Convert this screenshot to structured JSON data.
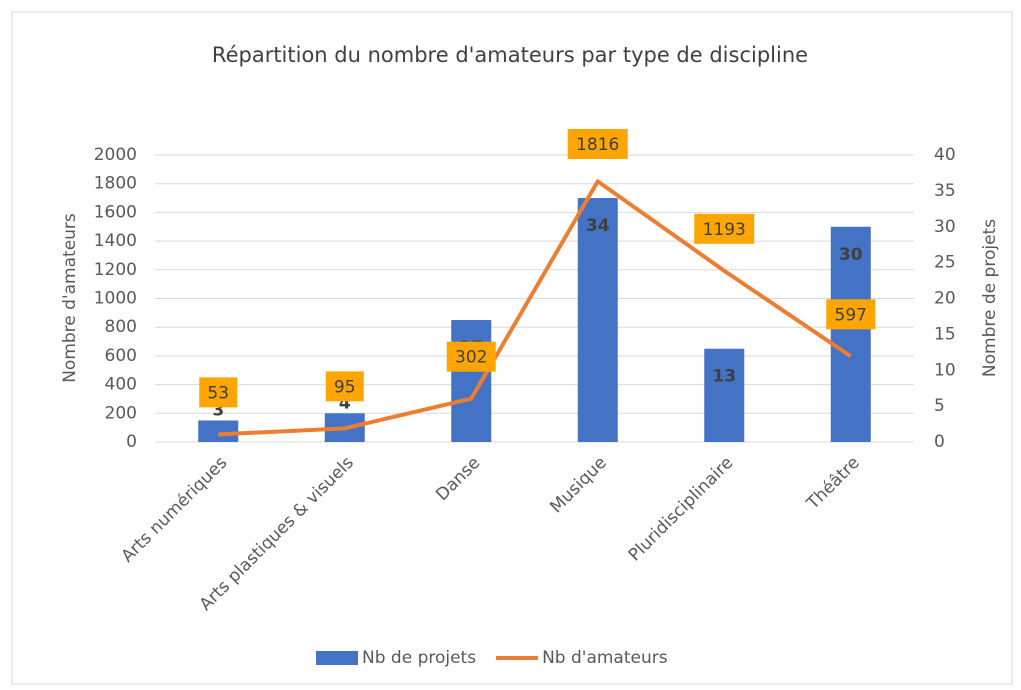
{
  "chart_data": {
    "type": "bar+line",
    "title": "Répartition du nombre d'amateurs par type de discipline",
    "categories": [
      "Arts numériques",
      "Arts plastiques & visuels",
      "Danse",
      "Musique",
      "Pluridisciplinaire",
      "Théâtre"
    ],
    "series": [
      {
        "name": "Nb de projets",
        "type": "bar",
        "axis": "y2",
        "color": "#4472c4",
        "values": [
          3,
          4,
          17,
          34,
          13,
          30
        ]
      },
      {
        "name": "Nb d'amateurs",
        "type": "line",
        "axis": "y",
        "color": "#ed7d31",
        "values": [
          53,
          95,
          302,
          1816,
          1193,
          597
        ]
      }
    ],
    "ylabel": "Nombre d'amateurs",
    "y2label": "Nombre de projets",
    "ylim": [
      0,
      2000
    ],
    "yticks": [
      0,
      200,
      400,
      600,
      800,
      1000,
      1200,
      1400,
      1600,
      1800,
      2000
    ],
    "y2lim": [
      0,
      40
    ],
    "y2ticks": [
      0,
      5,
      10,
      15,
      20,
      25,
      30,
      35,
      40
    ],
    "grid": true,
    "legend": "bottom",
    "label_box_color": "#ffa500"
  }
}
